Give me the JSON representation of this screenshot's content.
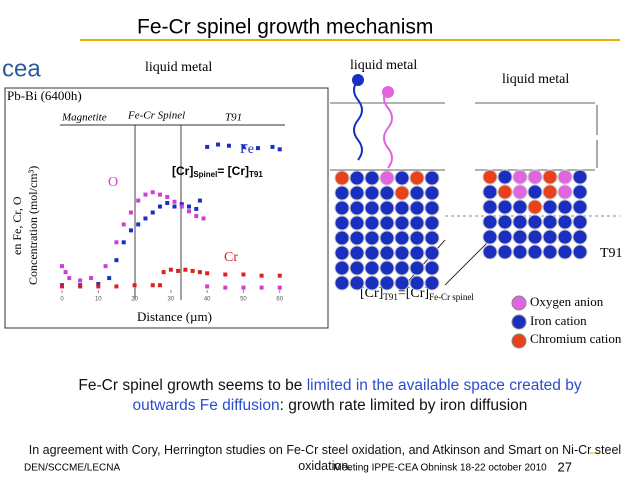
{
  "slide": {
    "title": "Fe-Cr spinel growth mechanism",
    "logo": "cea",
    "diagram": {
      "liquid_metal_labels": [
        "liquid metal",
        "liquid metal",
        "liquid metal"
      ],
      "steel_label": "T91",
      "equation": {
        "a": "[Cr]",
        "a_sub": "T91",
        "b": "=[Cr]",
        "b_sub": "Fe-Cr spinel"
      },
      "legend": [
        "Oxygen anion",
        "Iron cation",
        "Chromium cation"
      ]
    },
    "statement": [
      "Fe-Cr spinel growth seems to be ",
      "limited in  the available space created by outwards Fe diffusion",
      ": growth rate limited by iron diffusion"
    ],
    "note": "In agreement with Cory, Herrington studies on Fe-Cr steel oxidation, and Atkinson and Smart on Ni-Cr steel oxidation.",
    "footer": {
      "left": "DEN/SCCME/LECNA",
      "center": "Meeting IPPE-CEA Obninsk 18-22 october 2010",
      "page": "27"
    }
  },
  "chart_data": {
    "type": "scatter",
    "title": "Pb-Bi (6400h)",
    "x_label": "Distance (µm)",
    "y_label": [
      "en Fe, Cr, O",
      "Concentration (mol/cm³)"
    ],
    "regions": [
      "Magnetite",
      "Fe-Cr Spinel",
      "T91"
    ],
    "formula": {
      "a": "[Cr]",
      "a_sub": "Spinel",
      "b": "= [Cr]",
      "b_sub": "T91"
    },
    "xlim": [
      0,
      62
    ],
    "xticks": [
      0,
      10,
      20,
      30,
      40,
      50,
      60
    ],
    "ylim": [
      0,
      0.13
    ],
    "series": [
      {
        "name": "Fe",
        "color": "#1a2fc0",
        "x": [
          0,
          5,
          10,
          13,
          15,
          17,
          19,
          21,
          23,
          25,
          27,
          29,
          31,
          33,
          35,
          37,
          38,
          40,
          43,
          46,
          50,
          54,
          58,
          60
        ],
        "values": [
          0.004,
          0.004,
          0.005,
          0.01,
          0.025,
          0.04,
          0.05,
          0.055,
          0.06,
          0.065,
          0.07,
          0.073,
          0.07,
          0.072,
          0.07,
          0.068,
          0.075,
          0.12,
          0.122,
          0.121,
          0.12,
          0.119,
          0.12,
          0.118
        ]
      },
      {
        "name": "O",
        "color": "#d23cd2",
        "x": [
          0,
          1,
          2,
          5,
          8,
          12,
          15,
          17,
          19,
          21,
          23,
          25,
          27,
          29,
          31,
          33,
          35,
          37,
          39,
          40,
          45,
          50,
          55,
          60
        ],
        "values": [
          0.02,
          0.015,
          0.01,
          0.008,
          0.01,
          0.02,
          0.04,
          0.055,
          0.065,
          0.075,
          0.08,
          0.082,
          0.08,
          0.078,
          0.074,
          0.07,
          0.066,
          0.062,
          0.06,
          0.003,
          0.002,
          0.002,
          0.002,
          0.002
        ]
      },
      {
        "name": "Cr",
        "color": "#e02020",
        "x": [
          0,
          5,
          10,
          15,
          20,
          25,
          27,
          28,
          30,
          32,
          34,
          36,
          38,
          40,
          45,
          50,
          55,
          60
        ],
        "values": [
          0.003,
          0.003,
          0.003,
          0.003,
          0.004,
          0.004,
          0.004,
          0.015,
          0.017,
          0.016,
          0.017,
          0.016,
          0.015,
          0.014,
          0.013,
          0.013,
          0.012,
          0.012
        ]
      }
    ]
  }
}
